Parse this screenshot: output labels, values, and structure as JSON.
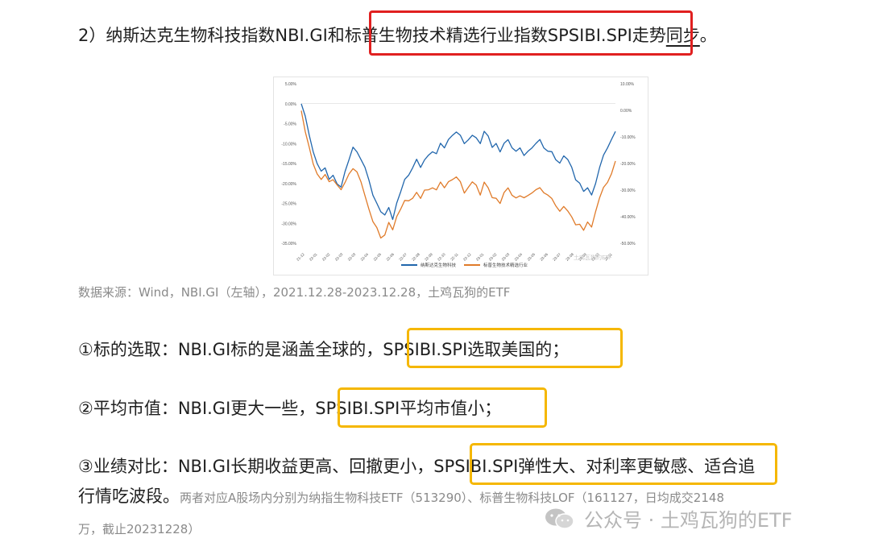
{
  "heading": {
    "prefix": "2）纳斯达克生物科技指数NBI.GI和",
    "highlight": "标普生物技术精选行业指数SPSIBI.SPI",
    "mid": "走势",
    "underlined": "同步",
    "end": "。"
  },
  "caption": "数据来源：Wind，NBI.GI（左轴），2021.12.28-2023.12.28，土鸡瓦狗的ETF",
  "points": [
    {
      "text": "①标的选取：NBI.GI标的是涵盖全球的，",
      "boxed": "SPSIBI.SPI选取美国的；",
      "after": ""
    },
    {
      "text": "②平均市值：NBI.GI更大一些，",
      "boxed": "SPSIBI.SPI平均市值小；",
      "after": ""
    },
    {
      "text": "③业绩对比：NBI.GI长期收益更高、回撤更小，",
      "boxed": "SPSIBI.SPI弹性大、对利率更敏感、",
      "after": "适合追"
    }
  ],
  "point3_cont": "行情吃波段。",
  "note": "两者对应A股场内分别为纳指生物科技ETF（513290）、标普生物科技LOF（161127，日均成交2148",
  "note_cont": "万，截止20231228）",
  "watermark": {
    "text": "公众号 · 土鸡瓦狗的ETF",
    "icon": "wechat-icon",
    "color": "#b5b5b5"
  },
  "colors": {
    "red_box": "#e02020",
    "yellow_box": "#f5b700",
    "nbi": "#2166ac",
    "spsibi": "#e07b2a"
  },
  "chart_data": {
    "type": "line",
    "dual_axis": true,
    "left_axis": {
      "ticks": [
        "5.00%",
        "0.00%",
        "-5.00%",
        "-10.00%",
        "-15.00%",
        "-20.00%",
        "-25.00%",
        "-30.00%",
        "-35.00%"
      ],
      "ylim": [
        -35,
        5
      ]
    },
    "right_axis": {
      "ticks": [
        "10.00%",
        "0.00%",
        "-10.00%",
        "-20.00%",
        "-30.00%",
        "-40.00%",
        "-50.00%"
      ],
      "ylim": [
        -50,
        10
      ]
    },
    "x_ticks": [
      "21-12",
      "22-01",
      "22-02",
      "22-03",
      "22-03",
      "22-04",
      "22-05",
      "22-06",
      "22-07",
      "22-08",
      "22-09",
      "22-10",
      "22-11",
      "22-12",
      "23-01",
      "23-02",
      "23-03",
      "23-04",
      "23-05",
      "23-06",
      "23-07",
      "23-08",
      "23-09",
      "23-10",
      "23-11"
    ],
    "watermark": "土鸡瓦狗的ETF",
    "series": [
      {
        "name": "纳斯达克生物科技",
        "axis": "left",
        "color": "#2166ac",
        "values": [
          0,
          -3,
          -8,
          -12,
          -15,
          -17,
          -16,
          -19,
          -18,
          -20,
          -21,
          -17,
          -14,
          -11,
          -12,
          -14,
          -16,
          -19,
          -23,
          -25,
          -27,
          -28,
          -26,
          -29,
          -25,
          -22,
          -19,
          -18,
          -16,
          -14,
          -16,
          -14,
          -13,
          -12,
          -12.5,
          -10,
          -11,
          -9,
          -8,
          -7,
          -8,
          -10,
          -9,
          -8,
          -8.5,
          -10,
          -7,
          -8,
          -11,
          -10,
          -12,
          -10,
          -9,
          -11,
          -12,
          -11,
          -13,
          -12,
          -11,
          -10,
          -9,
          -11,
          -12,
          -12,
          -14,
          -15,
          -13,
          -14,
          -16,
          -19,
          -20,
          -22,
          -21,
          -23,
          -20,
          -16,
          -13,
          -11,
          -9,
          -7
        ]
      },
      {
        "name": "标普生物技术精选行业",
        "axis": "right",
        "color": "#e07b2a",
        "values": [
          0,
          -8,
          -14,
          -20,
          -24,
          -26,
          -24,
          -27,
          -26,
          -28,
          -30,
          -27,
          -24,
          -22,
          -23,
          -27,
          -32,
          -37,
          -42,
          -44,
          -48,
          -47,
          -42,
          -45,
          -40,
          -37,
          -34,
          -34,
          -33,
          -31,
          -33,
          -30,
          -30,
          -29,
          -30,
          -27,
          -29,
          -27,
          -26,
          -25,
          -27,
          -31,
          -29,
          -27,
          -28,
          -32,
          -27,
          -29,
          -33,
          -33,
          -35,
          -31,
          -29,
          -32,
          -33,
          -32,
          -33,
          -32,
          -31,
          -30,
          -29,
          -31,
          -32,
          -33,
          -36,
          -38,
          -36,
          -38,
          -40,
          -43,
          -43,
          -45,
          -42,
          -44,
          -38,
          -33,
          -29,
          -27,
          -24,
          -19
        ]
      }
    ]
  }
}
